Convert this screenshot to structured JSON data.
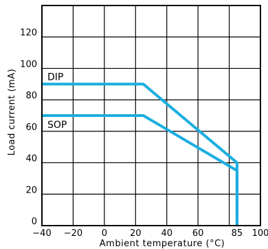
{
  "chart_data": {
    "type": "line",
    "xlabel": "Ambient temperature (°C)",
    "ylabel": "Load current (mA)",
    "xlim": [
      -40,
      100
    ],
    "ylim": [
      0,
      140
    ],
    "grid": true,
    "x_ticks": [
      "−40",
      "−20",
      "0",
      "20",
      "40",
      "60",
      "85",
      "100"
    ],
    "x_tick_values": [
      -40,
      -20,
      0,
      20,
      40,
      60,
      85,
      100
    ],
    "y_ticks": [
      "0",
      "20",
      "40",
      "60",
      "80",
      "100",
      "120"
    ],
    "y_tick_values": [
      0,
      20,
      40,
      60,
      80,
      100,
      120
    ],
    "series_color": "#1aaee0",
    "series": [
      {
        "name": "DIP",
        "x": [
          -40,
          25,
          85,
          85
        ],
        "y": [
          90,
          90,
          40,
          0
        ]
      },
      {
        "name": "SOP",
        "x": [
          -40,
          25,
          85,
          85
        ],
        "y": [
          70,
          70,
          35,
          0
        ]
      }
    ]
  }
}
